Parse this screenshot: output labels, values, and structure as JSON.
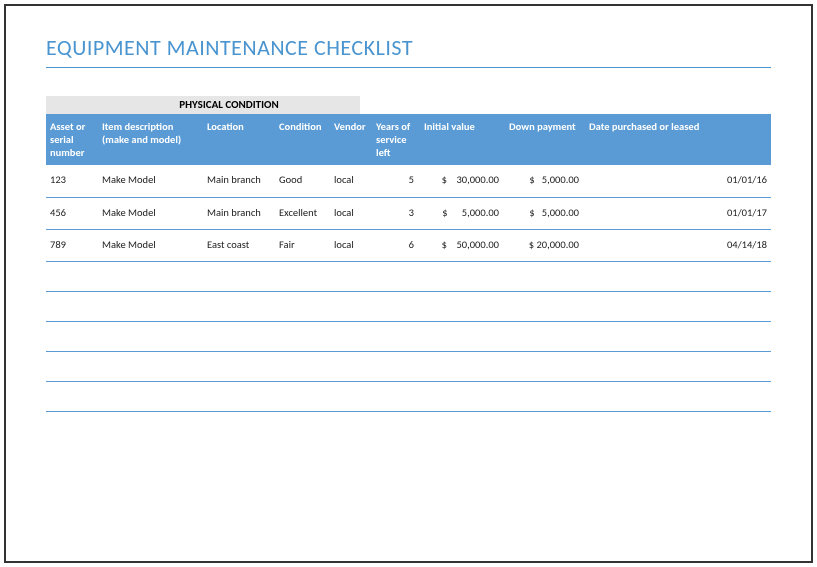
{
  "title": "EQUIPMENT MAINTENANCE CHECKLIST",
  "section_header": "PHYSICAL CONDITION",
  "colors": {
    "title_color": "#4a95d0",
    "header_bg": "#5b9bd5",
    "header_text": "#ffffff",
    "section_bg": "#e6e6e6",
    "row_border": "#5b9bd5",
    "page_border": "#333333"
  },
  "table": {
    "columns": [
      "Asset or serial number",
      "Item description (make and model)",
      "Location",
      "Condition",
      "Vendor",
      "Years of service left",
      "Initial value",
      "Down payment",
      "Date purchased or leased"
    ],
    "rows": [
      {
        "asset": "123",
        "description": "Make Model",
        "location": "Main branch",
        "condition": "Good",
        "vendor": "local",
        "years": "5",
        "initial_value": "$    30,000.00",
        "down_payment": "$   5,000.00",
        "date": "01/01/16"
      },
      {
        "asset": "456",
        "description": "Make Model",
        "location": "Main branch",
        "condition": "Excellent",
        "vendor": "local",
        "years": "3",
        "initial_value": "$      5,000.00",
        "down_payment": "$   5,000.00",
        "date": "01/01/17"
      },
      {
        "asset": "789",
        "description": "Make Model",
        "location": "East coast",
        "condition": "Fair",
        "vendor": "local",
        "years": "6",
        "initial_value": "$    50,000.00",
        "down_payment": "$ 20,000.00",
        "date": "04/14/18"
      }
    ],
    "empty_rows": 5
  }
}
